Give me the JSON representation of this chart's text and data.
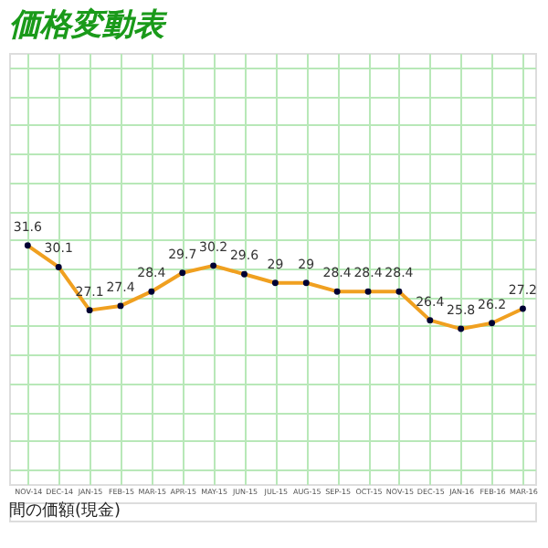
{
  "chart_data": {
    "type": "line",
    "title": "価格変動表",
    "categories": [
      "NOV-14",
      "DEC-14",
      "JAN-15",
      "FEB-15",
      "MAR-15",
      "APR-15",
      "MAY-15",
      "JUN-15",
      "JUL-15",
      "AUG-15",
      "SEP-15",
      "OCT-15",
      "NOV-15",
      "DEC-15",
      "JAN-16",
      "FEB-16",
      "MAR-16"
    ],
    "series": [
      {
        "color": "#f0a020",
        "values": [
          31.6,
          30.1,
          27.1,
          27.4,
          28.4,
          29.7,
          30.2,
          29.6,
          29,
          29,
          28.4,
          28.4,
          28.4,
          26.4,
          25.8,
          26.2,
          27.2
        ]
      }
    ],
    "ylim": [
      15,
      45
    ],
    "data_labels": true,
    "marker": "circle",
    "grid": true,
    "line_style": "solid",
    "annotations": [
      "間の価額(現金)"
    ]
  }
}
